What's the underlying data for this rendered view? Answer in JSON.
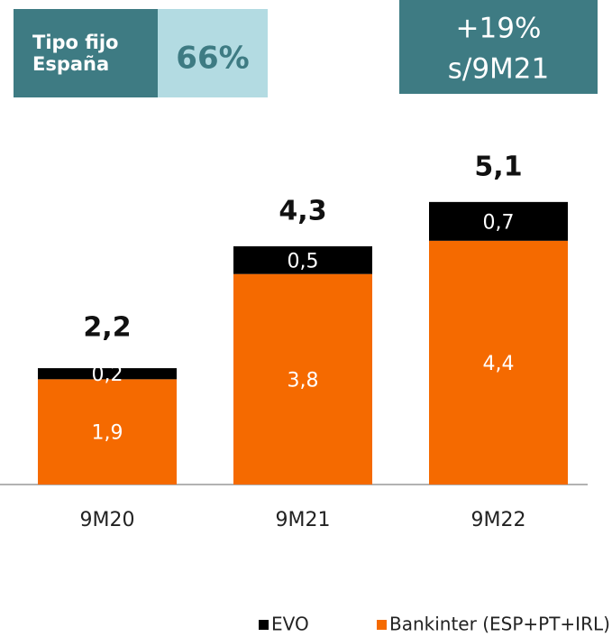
{
  "chart_data": {
    "type": "stacked_bar",
    "annotations": {
      "fixed_rate_label": [
        "Tipo fijo",
        "España"
      ],
      "fixed_rate_value": "66%",
      "growth": [
        "+19%",
        "s/9M21"
      ]
    },
    "categories": [
      "9M20",
      "9M21",
      "9M22"
    ],
    "series": [
      {
        "name": "Bankinter (ESP+PT+IRL)",
        "color": "#f56a00",
        "values": [
          1.9,
          3.8,
          4.4
        ],
        "value_labels": [
          "1,9",
          "3,8",
          "4,4"
        ]
      },
      {
        "name": "EVO",
        "color": "#000000",
        "values": [
          0.2,
          0.5,
          0.7
        ],
        "value_labels": [
          "0,2",
          "0,5",
          "0,7"
        ]
      }
    ],
    "totals": [
      2.2,
      4.3,
      5.1
    ],
    "total_labels": [
      "2,2",
      "4,3",
      "5,1"
    ]
  }
}
